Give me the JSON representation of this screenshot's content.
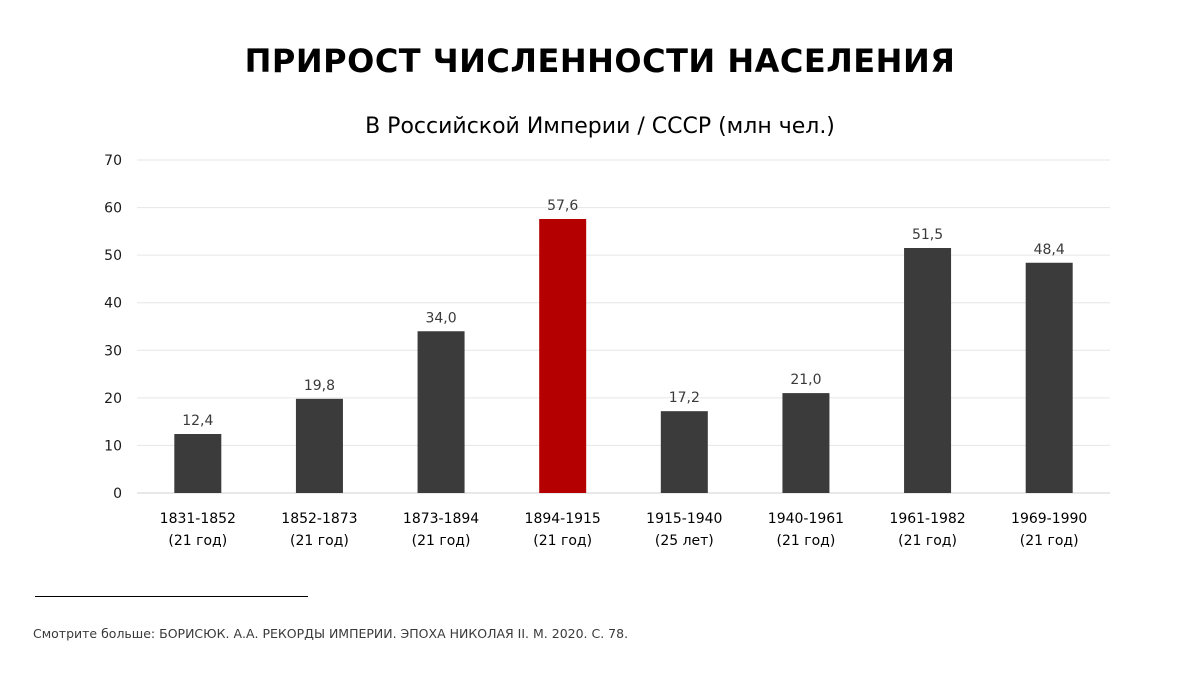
{
  "chart_data": {
    "type": "bar",
    "title": "ПРИРОСТ ЧИСЛЕННОСТИ НАСЕЛЕНИЯ",
    "subtitle": "В Российской Империи / СССР (млн чел.)",
    "categories": [
      [
        "1831-1852",
        "(21 год)"
      ],
      [
        "1852-1873",
        "(21 год)"
      ],
      [
        "1873-1894",
        "(21 год)"
      ],
      [
        "1894-1915",
        "(21 год)"
      ],
      [
        "1915-1940",
        "(25 лет)"
      ],
      [
        "1940-1961",
        "(21 год)"
      ],
      [
        "1961-1982",
        "(21 год)"
      ],
      [
        "1969-1990",
        "(21 год)"
      ]
    ],
    "values": [
      12.4,
      19.8,
      34.0,
      57.6,
      17.2,
      21.0,
      51.5,
      48.4
    ],
    "value_labels": [
      "12,4",
      "19,8",
      "34,0",
      "57,6",
      "17,2",
      "21,0",
      "51,5",
      "48,4"
    ],
    "highlight_index": 3,
    "ylim": [
      0,
      70
    ],
    "yticks": [
      0,
      10,
      20,
      30,
      40,
      50,
      60,
      70
    ],
    "grid": true,
    "legend": "none",
    "colors": {
      "bar": "#3b3b3b",
      "highlight": "#b40000",
      "grid": "#e6e6e6"
    }
  },
  "footer": {
    "source": "Смотрите больше: БОРИСЮК. А.А. РЕКОРДЫ ИМПЕРИИ. ЭПОХА НИКОЛАЯ II. М. 2020. С. 78."
  }
}
